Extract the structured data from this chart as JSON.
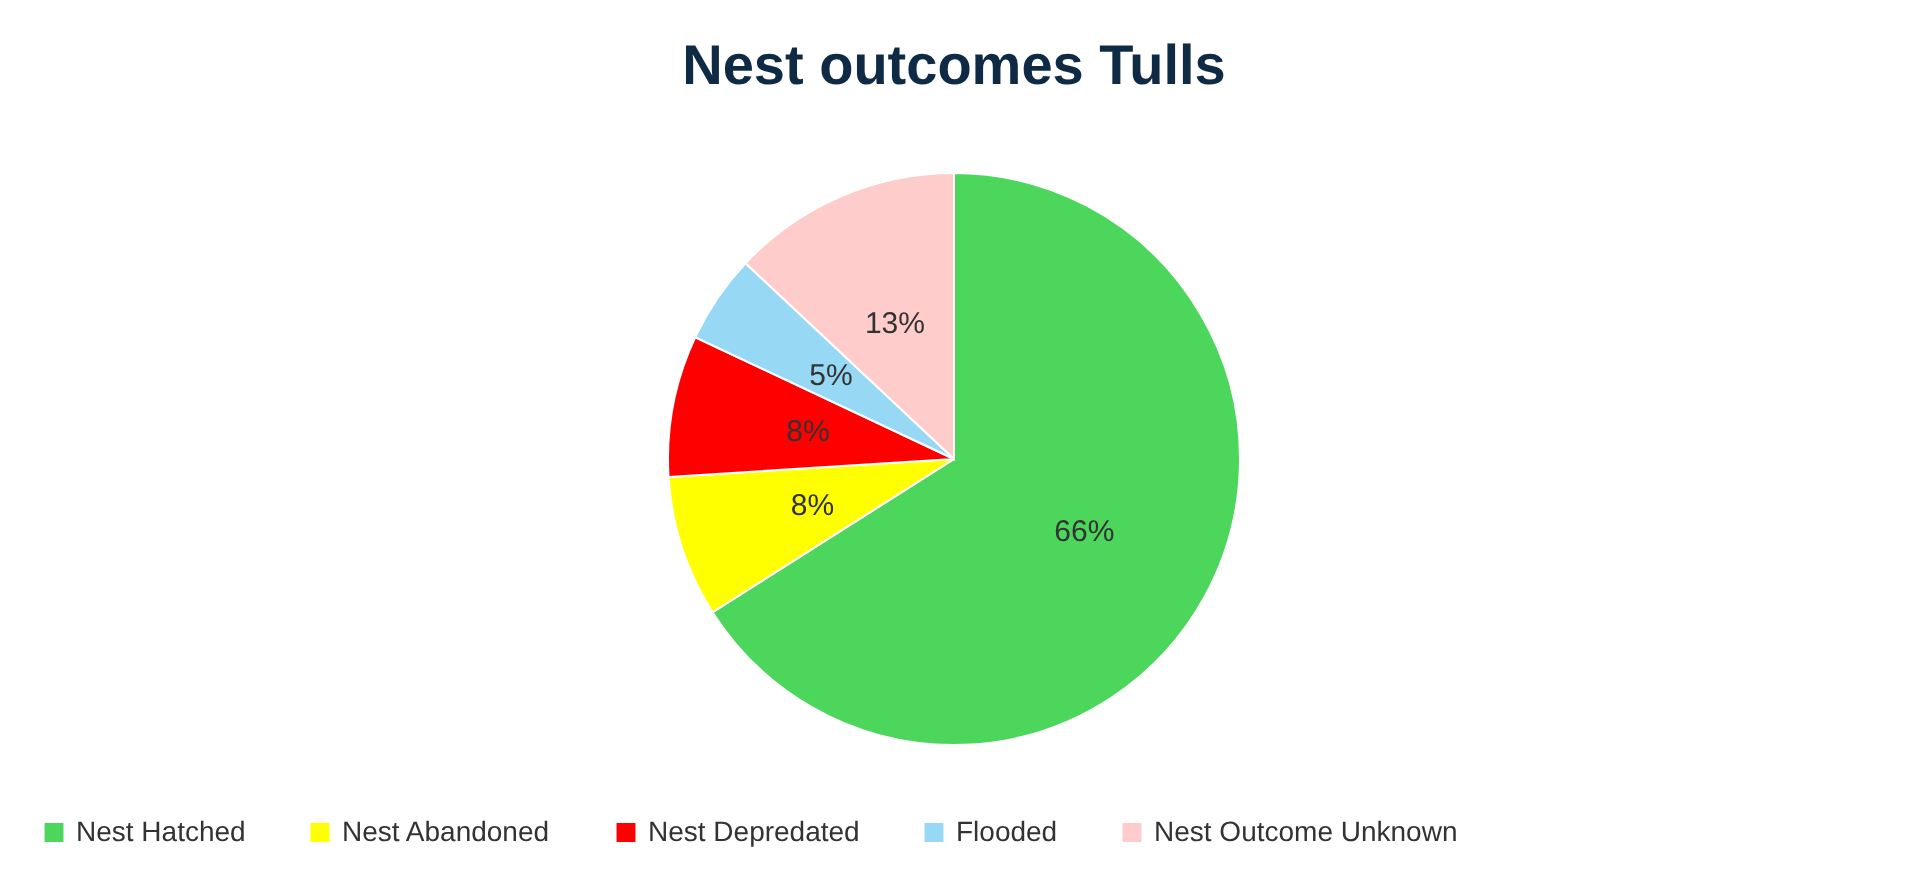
{
  "chart_data": {
    "type": "pie",
    "title": "Nest outcomes Tulls",
    "categories": [
      "Nest Hatched",
      "Nest Abandoned",
      "Nest Depredated",
      "Flooded",
      "Nest Outcome Unknown"
    ],
    "values": [
      66,
      8,
      8,
      5,
      13
    ],
    "value_labels": [
      "66%",
      "8%",
      "8%",
      "5%",
      "13%"
    ],
    "colors": [
      "#4cd65c",
      "#ffff00",
      "#ff0000",
      "#97d9f5",
      "#ffcccc"
    ],
    "legend": "bottom"
  }
}
